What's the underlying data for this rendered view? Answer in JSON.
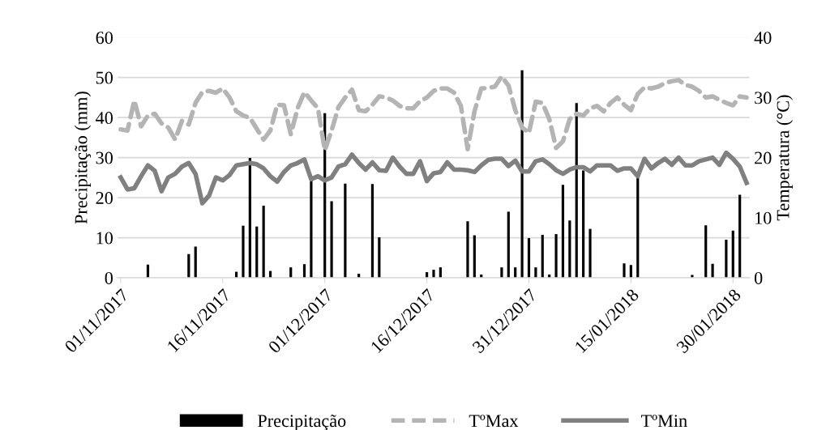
{
  "chart_data": {
    "type": "bar",
    "ylabel": "Precipitação (mm)",
    "y2label": "Temperatura (°C)",
    "x": [
      "2017-11-01",
      "2017-11-02",
      "2017-11-03",
      "2017-11-04",
      "2017-11-05",
      "2017-11-06",
      "2017-11-07",
      "2017-11-08",
      "2017-11-09",
      "2017-11-10",
      "2017-11-11",
      "2017-11-12",
      "2017-11-13",
      "2017-11-14",
      "2017-11-15",
      "2017-11-16",
      "2017-11-17",
      "2017-11-18",
      "2017-11-19",
      "2017-11-20",
      "2017-11-21",
      "2017-11-22",
      "2017-11-23",
      "2017-11-24",
      "2017-11-25",
      "2017-11-26",
      "2017-11-27",
      "2017-11-28",
      "2017-11-29",
      "2017-11-30",
      "2017-12-01",
      "2017-12-02",
      "2017-12-03",
      "2017-12-04",
      "2017-12-05",
      "2017-12-06",
      "2017-12-07",
      "2017-12-08",
      "2017-12-09",
      "2017-12-10",
      "2017-12-11",
      "2017-12-12",
      "2017-12-13",
      "2017-12-14",
      "2017-12-15",
      "2017-12-16",
      "2017-12-17",
      "2017-12-18",
      "2017-12-19",
      "2017-12-20",
      "2017-12-21",
      "2017-12-22",
      "2017-12-23",
      "2017-12-24",
      "2017-12-25",
      "2017-12-26",
      "2017-12-27",
      "2017-12-28",
      "2017-12-29",
      "2017-12-30",
      "2017-12-31",
      "2018-01-01",
      "2018-01-02",
      "2018-01-03",
      "2018-01-04",
      "2018-01-05",
      "2018-01-06",
      "2018-01-07",
      "2018-01-08",
      "2018-01-09",
      "2018-01-10",
      "2018-01-11",
      "2018-01-12",
      "2018-01-13",
      "2018-01-14",
      "2018-01-15",
      "2018-01-16",
      "2018-01-17",
      "2018-01-18",
      "2018-01-19",
      "2018-01-20",
      "2018-01-21",
      "2018-01-22",
      "2018-01-23",
      "2018-01-24",
      "2018-01-25",
      "2018-01-26",
      "2018-01-27",
      "2018-01-28",
      "2018-01-29",
      "2018-01-30",
      "2018-01-31",
      "2018-02-01"
    ],
    "series": [
      {
        "name": "Precipitação",
        "color": "#000000",
        "values": [
          null,
          null,
          null,
          null,
          3.3,
          null,
          null,
          null,
          null,
          null,
          5.9,
          7.8,
          null,
          null,
          null,
          null,
          null,
          1.5,
          13.0,
          29.9,
          12.8,
          18.0,
          1.7,
          null,
          null,
          2.6,
          null,
          3.4,
          24.3,
          null,
          41.1,
          19.1,
          null,
          23.5,
          null,
          1.0,
          null,
          23.4,
          10.1,
          null,
          null,
          null,
          null,
          null,
          null,
          1.4,
          2.0,
          2.6,
          null,
          null,
          null,
          14.1,
          10.6,
          0.8,
          null,
          null,
          2.6,
          16.5,
          2.6,
          51.8,
          9.9,
          2.6,
          10.7,
          0.8,
          10.9,
          23.2,
          14.3,
          43.6,
          26.8,
          12.2,
          null,
          null,
          null,
          null,
          3.6,
          3.2,
          25.0,
          null,
          null,
          null,
          null,
          null,
          null,
          null,
          0.7,
          null,
          13.1,
          3.5,
          null,
          9.5,
          11.8,
          20.7,
          null
        ]
      },
      {
        "name": "TºMax",
        "type": "line",
        "axis": "y2",
        "color": "#b4b4b4",
        "line_style": "dashed",
        "values": [
          24.7,
          24.5,
          29.5,
          25.2,
          27.0,
          27.3,
          25.7,
          25.0,
          23.0,
          26.1,
          25.5,
          29.1,
          30.9,
          31.1,
          30.8,
          31.5,
          30.0,
          27.7,
          27.0,
          26.6,
          24.8,
          23.0,
          24.5,
          28.8,
          28.7,
          23.9,
          28.2,
          30.9,
          29.5,
          28.2,
          21.2,
          24.5,
          28.4,
          30.0,
          31.3,
          27.9,
          27.7,
          28.8,
          30.2,
          30.0,
          29.5,
          28.6,
          28.2,
          28.2,
          29.4,
          30.0,
          31.1,
          31.5,
          31.5,
          30.8,
          28.6,
          21.4,
          27.7,
          31.5,
          31.6,
          31.8,
          33.5,
          32.0,
          27.9,
          25.0,
          24.1,
          29.3,
          29.1,
          26.4,
          21.6,
          22.7,
          26.4,
          27.3,
          27.0,
          28.2,
          28.6,
          27.7,
          29.1,
          30.0,
          28.8,
          27.9,
          30.6,
          31.7,
          31.5,
          31.8,
          32.4,
          32.7,
          32.9,
          32.1,
          31.8,
          31.1,
          30.0,
          30.2,
          29.6,
          29.1,
          28.7,
          30.2,
          30.0
        ]
      },
      {
        "name": "TºMin",
        "type": "line",
        "axis": "y2",
        "color": "#808080",
        "line_style": "solid",
        "values": [
          16.7,
          14.7,
          14.9,
          16.9,
          18.7,
          17.8,
          14.4,
          16.7,
          17.3,
          18.5,
          19.1,
          17.3,
          12.4,
          13.7,
          16.7,
          16.2,
          17.1,
          18.7,
          18.9,
          19.1,
          18.9,
          18.2,
          16.9,
          16.0,
          17.6,
          18.7,
          19.1,
          19.7,
          16.4,
          16.9,
          16.2,
          16.7,
          18.5,
          18.9,
          20.5,
          19.1,
          18.0,
          19.2,
          17.9,
          17.8,
          20.0,
          18.5,
          17.3,
          17.3,
          19.4,
          16.1,
          17.4,
          17.6,
          19.2,
          18.0,
          18.0,
          17.9,
          17.6,
          18.7,
          19.6,
          19.8,
          19.8,
          18.6,
          19.5,
          17.7,
          17.7,
          19.4,
          19.7,
          18.9,
          17.9,
          17.3,
          18.0,
          18.4,
          18.4,
          17.7,
          18.7,
          18.7,
          18.7,
          17.8,
          18.2,
          18.2,
          16.9,
          19.8,
          18.2,
          19.1,
          19.8,
          18.8,
          20.0,
          18.7,
          18.7,
          19.4,
          19.7,
          20.0,
          18.8,
          20.8,
          19.8,
          18.5,
          15.8
        ]
      }
    ],
    "xlim": [
      "2017-10-31T12:00",
      "2018-02-01T12:00"
    ],
    "xticks": [
      {
        "value": "2017-11-01",
        "label": "01/11/2017"
      },
      {
        "value": "2017-11-16",
        "label": "16/11/2017"
      },
      {
        "value": "2017-12-01",
        "label": "01/12/2017"
      },
      {
        "value": "2017-12-16",
        "label": "16/12/2017"
      },
      {
        "value": "2017-12-31",
        "label": "31/12/2017"
      },
      {
        "value": "2018-01-15",
        "label": "15/01/2018"
      },
      {
        "value": "2018-01-30",
        "label": "30/01/2018"
      }
    ],
    "ylim": [
      0,
      60
    ],
    "yticks": [
      0,
      10,
      20,
      30,
      40,
      50,
      60
    ],
    "y2lim": [
      0,
      40
    ],
    "y2ticks": [
      0,
      10,
      20,
      30,
      40
    ],
    "grid": "y",
    "legend": "bottom"
  }
}
